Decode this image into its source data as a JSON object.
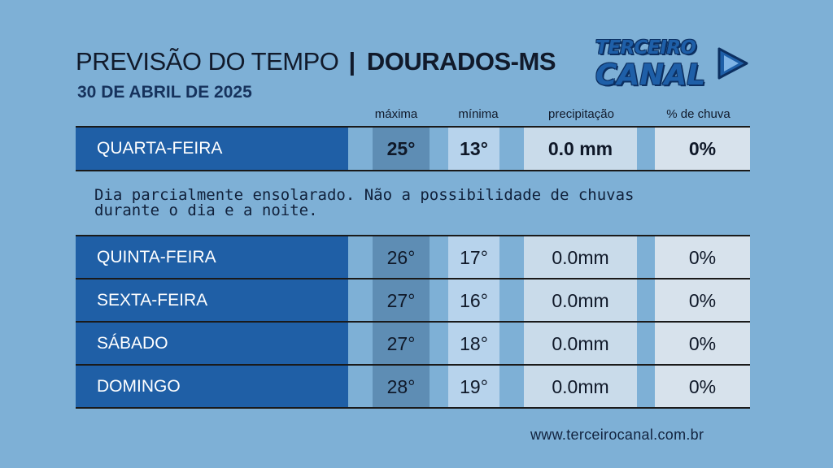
{
  "header": {
    "title_main": "PREVISÃO DO TEMPO",
    "separator": "|",
    "title_city": "DOURADOS-MS",
    "date": "30 DE ABRIL DE 2025"
  },
  "logo": {
    "line1": "TERCEIRO",
    "line2": "CANAL",
    "icon": "play-arrow-icon",
    "color": "#1e5fa8"
  },
  "columns": {
    "max": "máxima",
    "min": "mínima",
    "precip": "precipitação",
    "rain": "% de chuva"
  },
  "today": {
    "day": "QUARTA-FEIRA",
    "max": "25°",
    "min": "13°",
    "precip": "0.0 mm",
    "rain": "0%",
    "description_line1": "Dia parcialmente ensolarado. Não a possibilidade de chuvas",
    "description_line2": "durante o dia e a noite."
  },
  "forecast": [
    {
      "day": "QUINTA-FEIRA",
      "max": "26°",
      "min": "17°",
      "precip": "0.0mm",
      "rain": "0%"
    },
    {
      "day": "SEXTA-FEIRA",
      "max": "27°",
      "min": "16°",
      "precip": "0.0mm",
      "rain": "0%"
    },
    {
      "day": "SÁBADO",
      "max": "27°",
      "min": "18°",
      "precip": "0.0mm",
      "rain": "0%"
    },
    {
      "day": "DOMINGO",
      "max": "28°",
      "min": "19°",
      "precip": "0.0mm",
      "rain": "0%"
    }
  ],
  "footer": {
    "url": "www.terceirocanal.com.br"
  },
  "colors": {
    "background": "#7eb0d6",
    "day_cell": "#1f5fa6",
    "max_cell": "#5e8db4",
    "min_cell": "#b7d3ec",
    "precip_cell": "#c9dbea",
    "rain_cell": "#d7e2ec"
  }
}
